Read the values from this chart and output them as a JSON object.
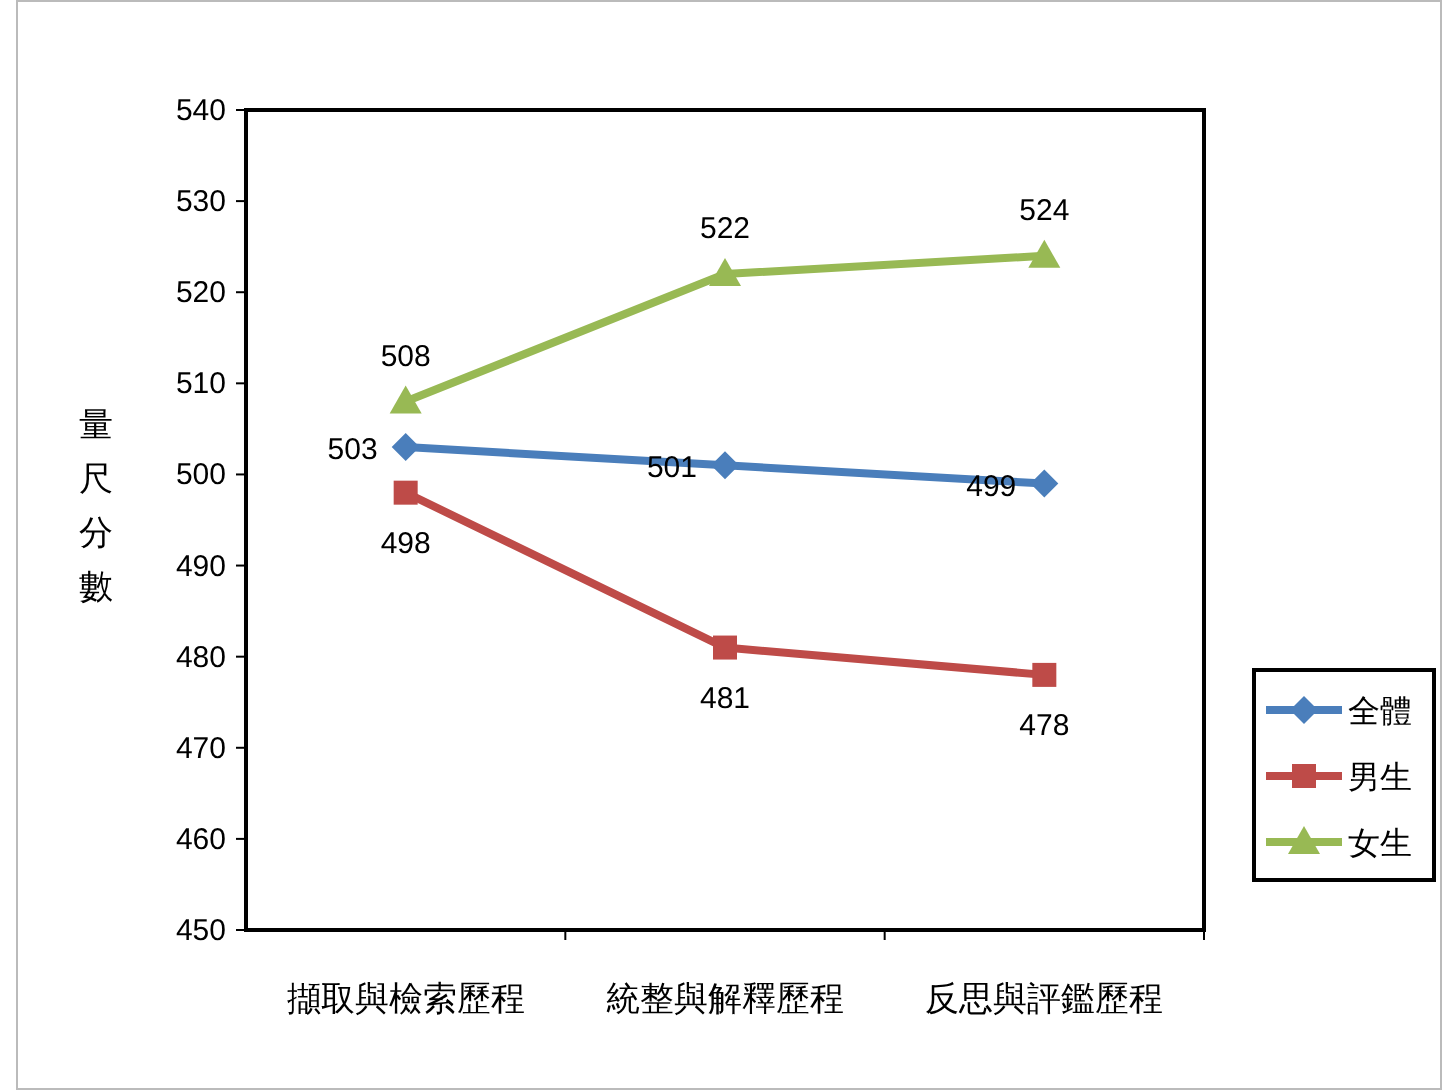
{
  "chart_data": {
    "type": "line",
    "ylabel": "量尺分數",
    "categories": [
      "擷取與檢索歷程",
      "統整與解釋歷程",
      "反思與評鑑歷程"
    ],
    "series": [
      {
        "name": "全體",
        "color": "#4a7ebb",
        "values": [
          503,
          501,
          499
        ],
        "marker": "diamond"
      },
      {
        "name": "男生",
        "color": "#be4b48",
        "values": [
          498,
          481,
          478
        ],
        "marker": "square"
      },
      {
        "name": "女生",
        "color": "#98b954",
        "values": [
          508,
          522,
          524
        ],
        "marker": "triangle"
      }
    ],
    "ylim": [
      450,
      540
    ],
    "yticks": [
      450,
      460,
      470,
      480,
      490,
      500,
      510,
      520,
      530,
      540
    ],
    "grid": false,
    "legend": "right",
    "data_labels": true,
    "line_style": "solid"
  }
}
